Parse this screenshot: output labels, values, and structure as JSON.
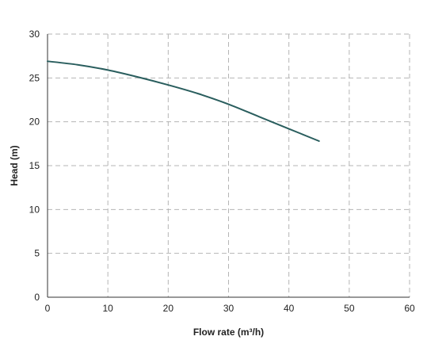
{
  "chart_data": {
    "type": "line",
    "title": "",
    "xlabel": "Flow rate (m³/h)",
    "ylabel": "Head (m)",
    "xlim": [
      0,
      60
    ],
    "ylim": [
      0,
      30
    ],
    "x_ticks": [
      0,
      10,
      20,
      30,
      40,
      50,
      60
    ],
    "y_ticks": [
      0,
      5,
      10,
      15,
      20,
      25,
      30
    ],
    "x_tick_labels": [
      "0",
      "10",
      "20",
      "30",
      "40",
      "50",
      "60"
    ],
    "y_tick_labels": [
      "0",
      "5",
      "10",
      "15",
      "20",
      "25",
      "30"
    ],
    "grid": true,
    "legend": "none",
    "series": [
      {
        "color": "#2a5e5e",
        "x": [
          0,
          5,
          10,
          15,
          20,
          25,
          30,
          35,
          40,
          45
        ],
        "y": [
          26.9,
          26.5,
          25.9,
          25.1,
          24.2,
          23.2,
          22.0,
          20.6,
          19.2,
          17.8
        ]
      }
    ]
  }
}
